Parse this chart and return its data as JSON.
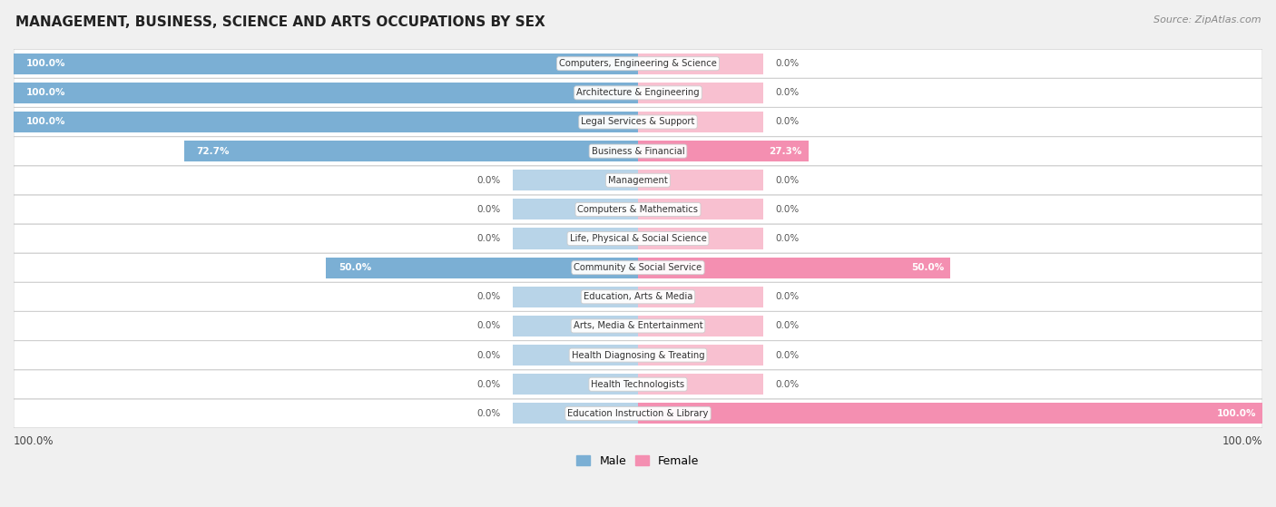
{
  "title": "MANAGEMENT, BUSINESS, SCIENCE AND ARTS OCCUPATIONS BY SEX",
  "source": "Source: ZipAtlas.com",
  "categories": [
    "Computers, Engineering & Science",
    "Architecture & Engineering",
    "Legal Services & Support",
    "Business & Financial",
    "Management",
    "Computers & Mathematics",
    "Life, Physical & Social Science",
    "Community & Social Service",
    "Education, Arts & Media",
    "Arts, Media & Entertainment",
    "Health Diagnosing & Treating",
    "Health Technologists",
    "Education Instruction & Library"
  ],
  "male": [
    100.0,
    100.0,
    100.0,
    72.7,
    0.0,
    0.0,
    0.0,
    50.0,
    0.0,
    0.0,
    0.0,
    0.0,
    0.0
  ],
  "female": [
    0.0,
    0.0,
    0.0,
    27.3,
    0.0,
    0.0,
    0.0,
    50.0,
    0.0,
    0.0,
    0.0,
    0.0,
    100.0
  ],
  "male_color": "#7bafd4",
  "female_color": "#f48fb1",
  "male_color_stub": "#b8d4e8",
  "female_color_stub": "#f8c0d0",
  "background_color": "#f0f0f0",
  "row_bg_color": "#ffffff",
  "figsize": [
    14.06,
    5.59
  ]
}
